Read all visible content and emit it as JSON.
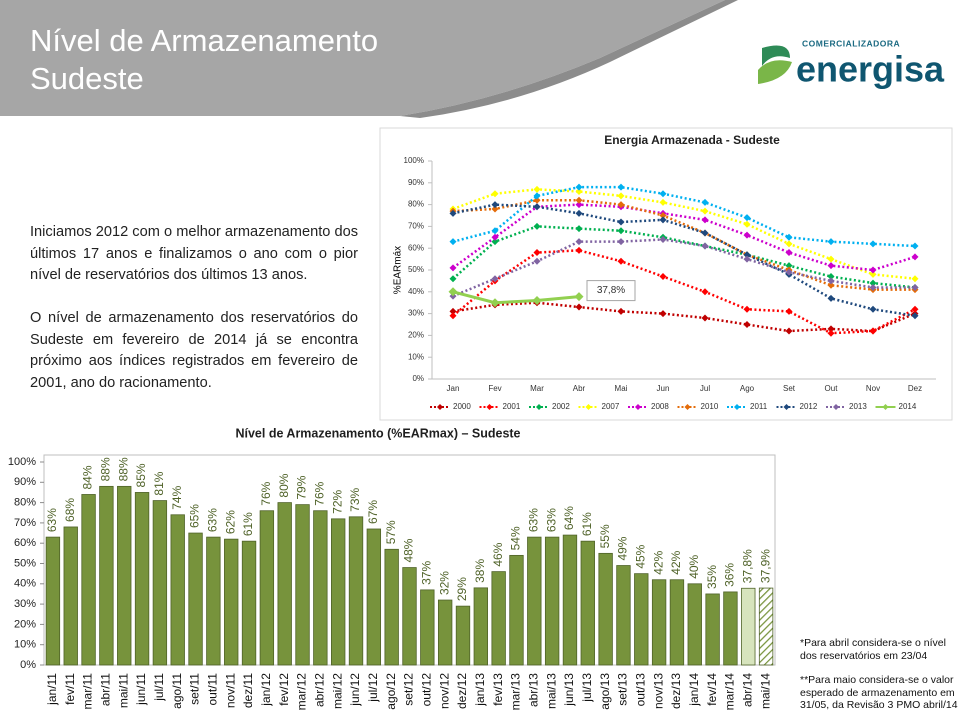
{
  "header": {
    "title": "Nível de Armazenamento Sudeste"
  },
  "logo": {
    "top": "COMERCIALIZADORA",
    "name": "energisa"
  },
  "paragraphs": [
    "Iniciamos 2012 com o melhor armazenamento dos últimos 17 anos e finalizamos o ano com o pior nível de reservatórios dos últimos 13 anos.",
    "O nível de armazenamento dos reservatórios do Sudeste em fevereiro de 2014 já se encontra próximo aos índices registrados em fevereiro de 2001, ano do racionamento."
  ],
  "notes": [
    "*Para abril considera-se o nível dos reservatórios em 23/04",
    "**Para maio considera-se o valor esperado de armazenamento em 31/05, da Revisão 3 PMO abril/14"
  ],
  "chart_data": [
    {
      "type": "line",
      "title": "Energia Armazenada - Sudeste",
      "y_label": "%EARmáx",
      "categories": [
        "Jan",
        "Fev",
        "Mar",
        "Abr",
        "Mai",
        "Jun",
        "Jul",
        "Ago",
        "Set",
        "Out",
        "Nov",
        "Dez"
      ],
      "series": [
        {
          "name": "2000",
          "color": "#c00000",
          "line_style": "dotted",
          "values": [
            31,
            34,
            35,
            33,
            31,
            30,
            28,
            25,
            22,
            23,
            22,
            30
          ]
        },
        {
          "name": "2001",
          "color": "#ff0000",
          "line_style": "dotted",
          "values": [
            29,
            45,
            58,
            59,
            54,
            47,
            40,
            32,
            31,
            21,
            22,
            32
          ]
        },
        {
          "name": "2002",
          "color": "#00b050",
          "line_style": "dotted",
          "values": [
            46,
            63,
            70,
            69,
            68,
            65,
            61,
            57,
            52,
            47,
            44,
            42
          ]
        },
        {
          "name": "2007",
          "color": "#ffff00",
          "line_style": "dotted",
          "values": [
            78,
            85,
            87,
            86,
            84,
            81,
            77,
            71,
            62,
            55,
            48,
            46
          ]
        },
        {
          "name": "2008",
          "color": "#cc00cc",
          "line_style": "dotted",
          "values": [
            51,
            65,
            79,
            80,
            79,
            76,
            73,
            66,
            58,
            52,
            50,
            56
          ]
        },
        {
          "name": "2010",
          "color": "#e46c0a",
          "line_style": "dotted",
          "values": [
            77,
            78,
            82,
            82,
            80,
            75,
            67,
            57,
            50,
            43,
            41,
            41
          ]
        },
        {
          "name": "2011",
          "color": "#00b0f0",
          "line_style": "dotted",
          "values": [
            63,
            68,
            84,
            88,
            88,
            85,
            81,
            74,
            65,
            63,
            62,
            61
          ]
        },
        {
          "name": "2012",
          "color": "#1f497d",
          "line_style": "dotted",
          "values": [
            76,
            80,
            79,
            76,
            72,
            73,
            67,
            57,
            48,
            37,
            32,
            29
          ]
        },
        {
          "name": "2013",
          "color": "#8064a2",
          "line_style": "dotted",
          "values": [
            38,
            46,
            54,
            63,
            63,
            64,
            61,
            55,
            49,
            45,
            42,
            42
          ]
        },
        {
          "name": "2014",
          "color": "#92d050",
          "line_style": "solid",
          "values": [
            40,
            35,
            36,
            37.8,
            null,
            null,
            null,
            null,
            null,
            null,
            null,
            null
          ]
        }
      ],
      "annotations": [
        {
          "text": "37,8%"
        }
      ],
      "ylim": [
        0,
        100
      ],
      "yticks": [
        {
          "value": 0,
          "label": "0%"
        },
        {
          "value": 10,
          "label": "10%"
        },
        {
          "value": 20,
          "label": "20%"
        },
        {
          "value": 30,
          "label": "30%"
        },
        {
          "value": 40,
          "label": "40%"
        },
        {
          "value": 50,
          "label": "50%"
        },
        {
          "value": 60,
          "label": "60%"
        },
        {
          "value": 70,
          "label": "70%"
        },
        {
          "value": 80,
          "label": "80%"
        },
        {
          "value": 90,
          "label": "90%"
        },
        {
          "value": 100,
          "label": "100%"
        }
      ],
      "legend": "bottom"
    },
    {
      "type": "bar",
      "title": "Nível de Armazenamento (%EARmax) – Sudeste",
      "categories": [
        "jan/11",
        "fev/11",
        "mar/11",
        "abr/11",
        "mai/11",
        "jun/11",
        "jul/11",
        "ago/11",
        "set/11",
        "out/11",
        "nov/11",
        "dez/11",
        "jan/12",
        "fev/12",
        "mar/12",
        "abr/12",
        "mai/12",
        "jun/12",
        "jul/12",
        "ago/12",
        "set/12",
        "out/12",
        "nov/12",
        "dez/12",
        "jan/13",
        "fev/13",
        "mar/13",
        "abr/13",
        "mai/13",
        "jun/13",
        "jul/13",
        "ago/13",
        "set/13",
        "out/13",
        "nov/13",
        "dez/13",
        "jan/14",
        "fev/14",
        "mar/14",
        "abr/14",
        "mai/14"
      ],
      "values": [
        63,
        68,
        84,
        88,
        88,
        85,
        81,
        74,
        65,
        63,
        62,
        61,
        76,
        80,
        79,
        76,
        72,
        73,
        67,
        57,
        48,
        37,
        32,
        29,
        38,
        46,
        54,
        63,
        63,
        64,
        61,
        55,
        49,
        45,
        42,
        42,
        40,
        35,
        36,
        37.8,
        37.9
      ],
      "value_labels": [
        "63%",
        "68%",
        "84%",
        "88%",
        "88%",
        "85%",
        "81%",
        "74%",
        "65%",
        "63%",
        "62%",
        "61%",
        "76%",
        "80%",
        "79%",
        "76%",
        "72%",
        "73%",
        "67%",
        "57%",
        "48%",
        "37%",
        "32%",
        "29%",
        "38%",
        "46%",
        "54%",
        "63%",
        "63%",
        "64%",
        "61%",
        "55%",
        "49%",
        "45%",
        "42%",
        "42%",
        "40%",
        "35%",
        "36%",
        "37,8%",
        "37,9%"
      ],
      "colors": [
        "#77933c",
        "#77933c",
        "#77933c",
        "#77933c",
        "#77933c",
        "#77933c",
        "#77933c",
        "#77933c",
        "#77933c",
        "#77933c",
        "#77933c",
        "#77933c",
        "#77933c",
        "#77933c",
        "#77933c",
        "#77933c",
        "#77933c",
        "#77933c",
        "#77933c",
        "#77933c",
        "#77933c",
        "#77933c",
        "#77933c",
        "#77933c",
        "#77933c",
        "#77933c",
        "#77933c",
        "#77933c",
        "#77933c",
        "#77933c",
        "#77933c",
        "#77933c",
        "#77933c",
        "#77933c",
        "#77933c",
        "#77933c",
        "#77933c",
        "#77933c",
        "#77933c",
        "#d7e4bd",
        "#77933c"
      ],
      "patterns": [
        "solid",
        "solid",
        "solid",
        "solid",
        "solid",
        "solid",
        "solid",
        "solid",
        "solid",
        "solid",
        "solid",
        "solid",
        "solid",
        "solid",
        "solid",
        "solid",
        "solid",
        "solid",
        "solid",
        "solid",
        "solid",
        "solid",
        "solid",
        "solid",
        "solid",
        "solid",
        "solid",
        "solid",
        "solid",
        "solid",
        "solid",
        "solid",
        "solid",
        "solid",
        "solid",
        "solid",
        "solid",
        "solid",
        "solid",
        "solid",
        "hatch"
      ],
      "ylim": [
        0,
        100
      ],
      "yticks": [
        {
          "value": 0,
          "label": "0%"
        },
        {
          "value": 10,
          "label": "10%"
        },
        {
          "value": 20,
          "label": "20%"
        },
        {
          "value": 30,
          "label": "30%"
        },
        {
          "value": 40,
          "label": "40%"
        },
        {
          "value": 50,
          "label": "50%"
        },
        {
          "value": 60,
          "label": "60%"
        },
        {
          "value": 70,
          "label": "70%"
        },
        {
          "value": 80,
          "label": "80%"
        },
        {
          "value": 90,
          "label": "90%"
        },
        {
          "value": 100,
          "label": "100%"
        }
      ]
    }
  ]
}
